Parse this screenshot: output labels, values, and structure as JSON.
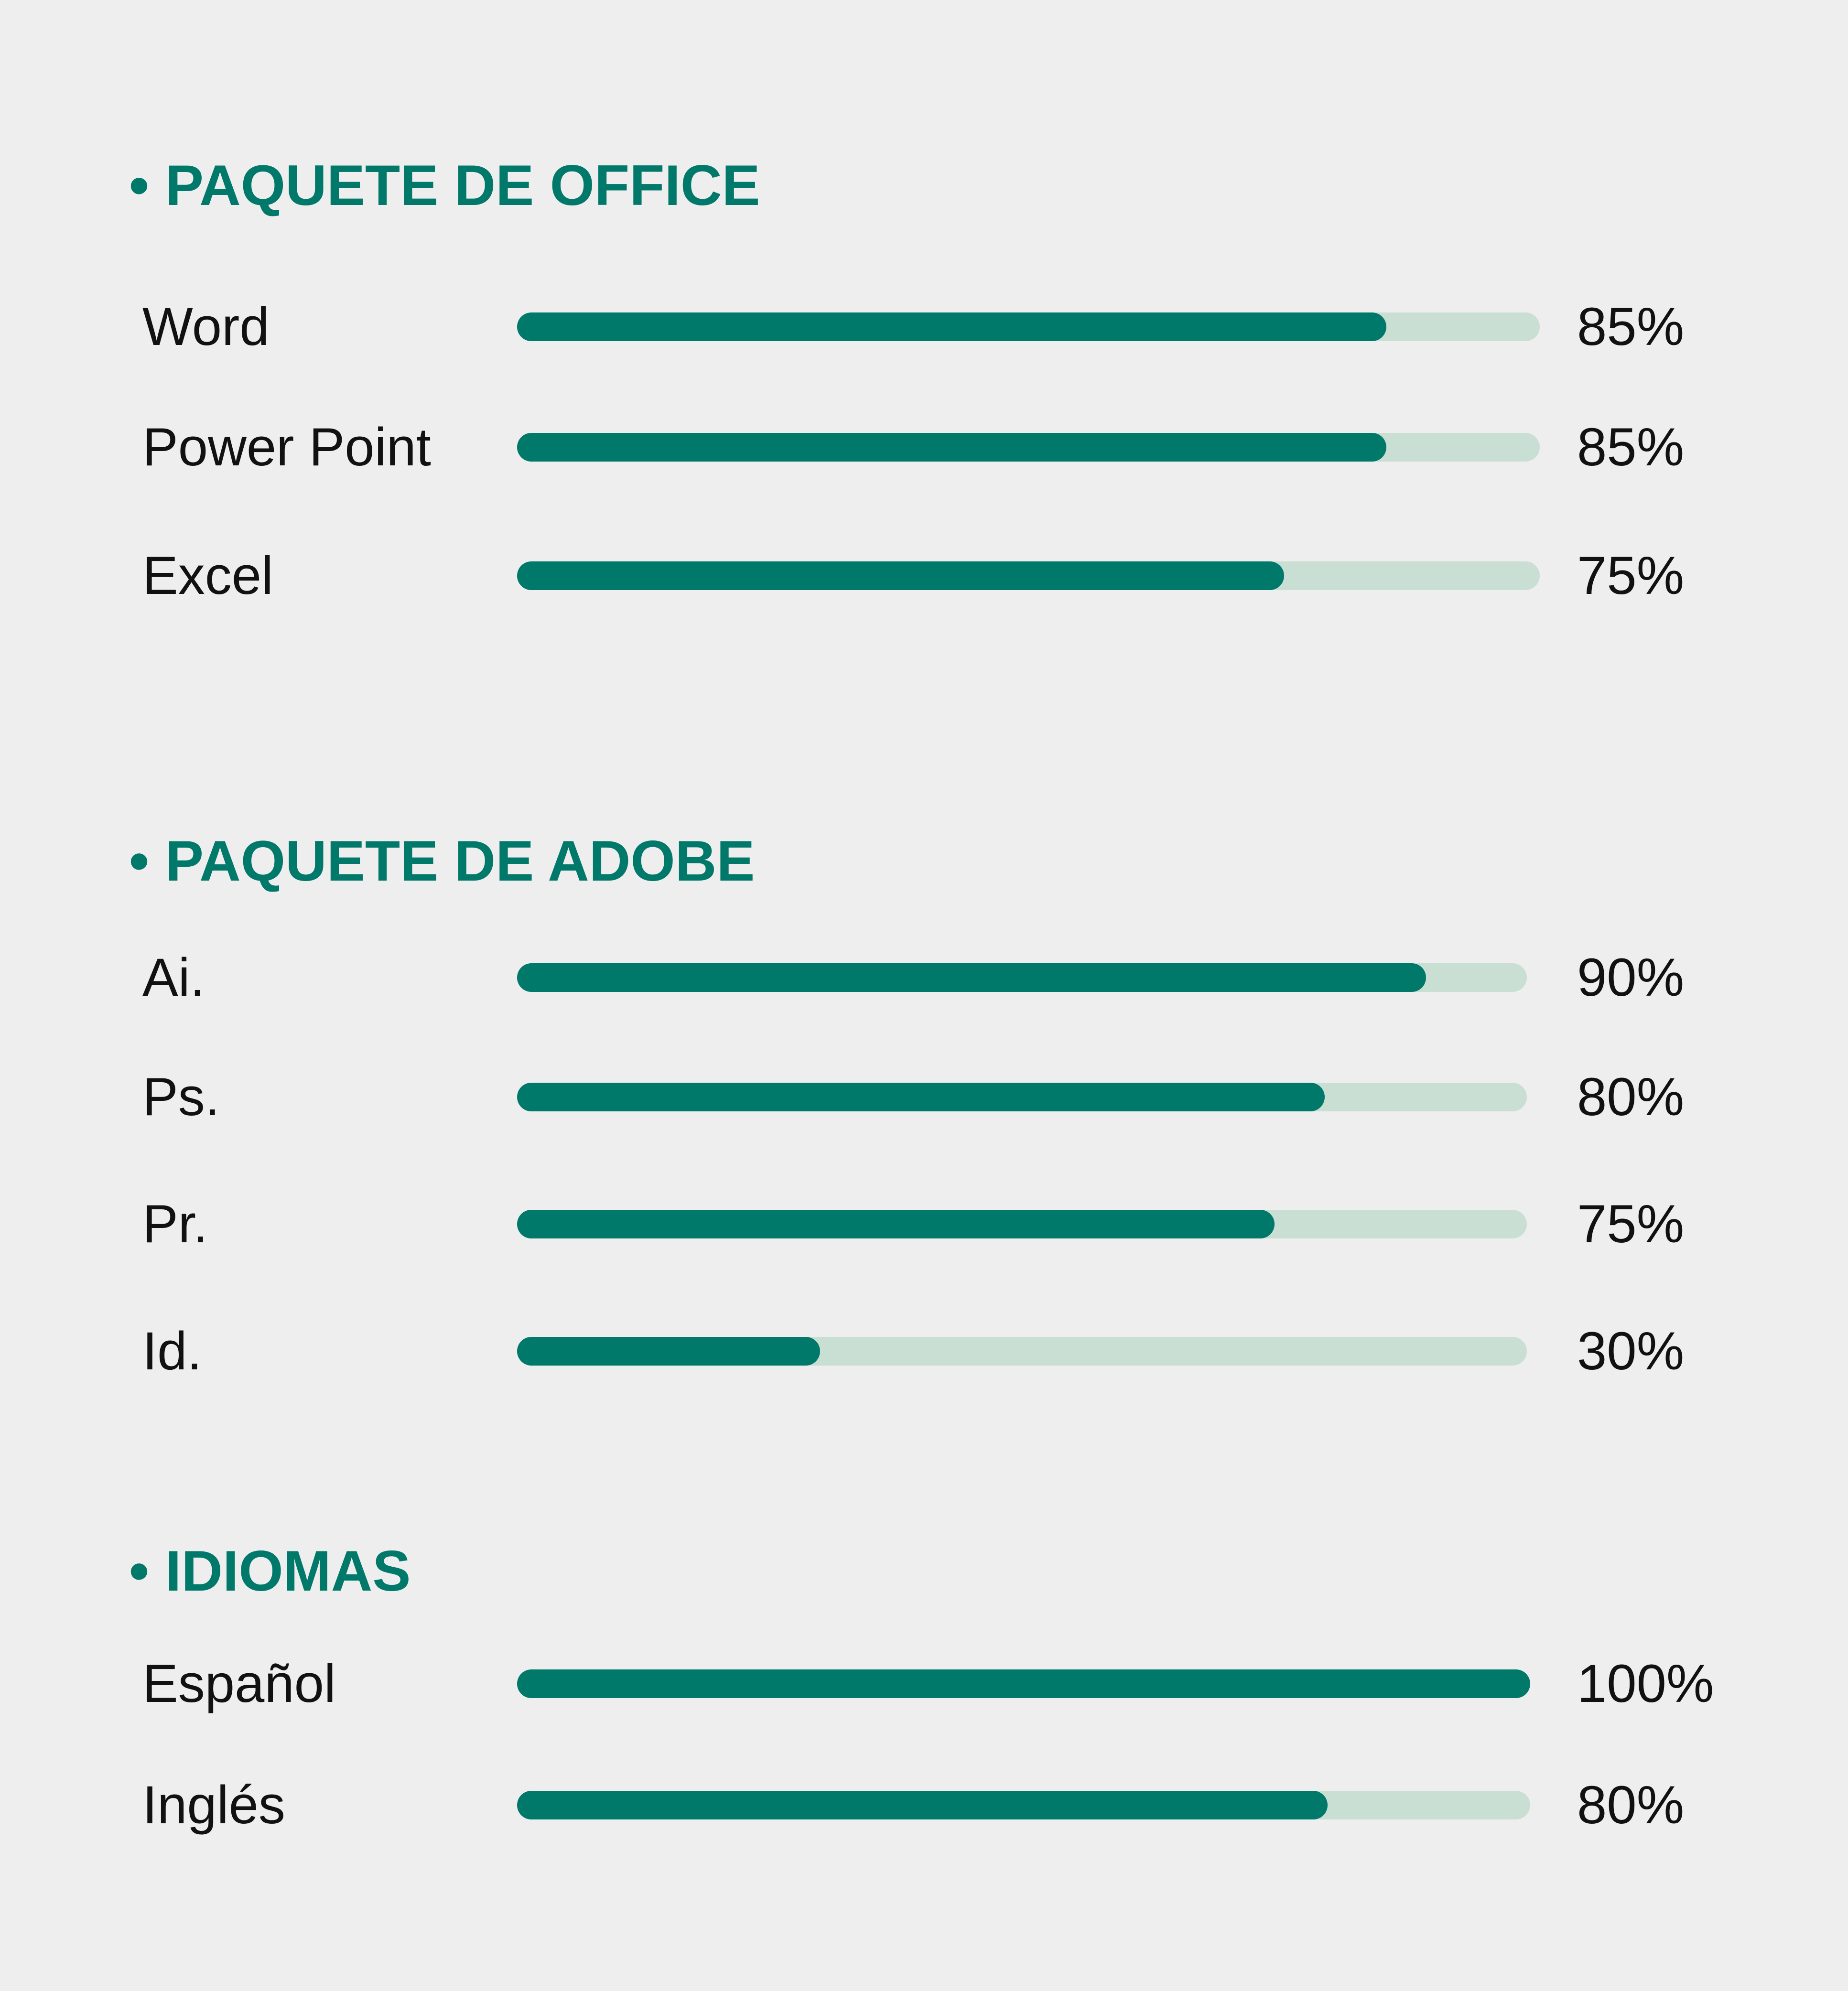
{
  "colors": {
    "background": "#eeeeee",
    "accent": "#00786a",
    "track": "#cadfd3",
    "text": "#111111"
  },
  "sections": [
    {
      "bullet": "•",
      "title": "PAQUETE DE OFFICE"
    },
    {
      "bullet": "•",
      "title": "PAQUETE DE ADOBE"
    },
    {
      "bullet": "•",
      "title": "IDIOMAS"
    }
  ],
  "chart_data": [
    {
      "type": "bar",
      "title": "PAQUETE DE OFFICE",
      "categories": [
        "Word",
        "Power Point",
        "Excel"
      ],
      "values": [
        85,
        85,
        75
      ],
      "value_labels": [
        "85%",
        "85%",
        "75%"
      ],
      "xlim": [
        0,
        100
      ]
    },
    {
      "type": "bar",
      "title": "PAQUETE DE ADOBE",
      "categories": [
        "Ai.",
        "Ps.",
        "Pr.",
        "Id."
      ],
      "values": [
        90,
        80,
        75,
        30
      ],
      "value_labels": [
        "90%",
        "80%",
        "75%",
        "30%"
      ],
      "xlim": [
        0,
        100
      ]
    },
    {
      "type": "bar",
      "title": "IDIOMAS",
      "categories": [
        "Español",
        "Inglés"
      ],
      "values": [
        100,
        80
      ],
      "value_labels": [
        "100%",
        "80%"
      ],
      "xlim": [
        0,
        100
      ]
    }
  ]
}
